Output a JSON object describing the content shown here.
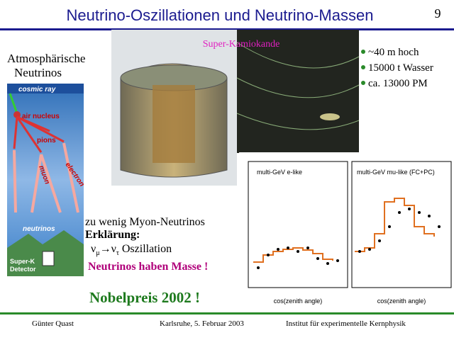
{
  "header": {
    "title": "Neutrino-Oszillationen und Neutrino-Massen",
    "page": "9"
  },
  "left": {
    "heading_line1": "Atmosphärische",
    "heading_line2": "Neutrinos"
  },
  "diagram": {
    "cosmic_ray": "cosmic ray",
    "air_nucleus": "air nucleus",
    "pions": "pions",
    "muon": "muon",
    "electron": "electron",
    "neutrinos": "neutrinos",
    "detector_line1": "Super-K",
    "detector_line2": "Detector"
  },
  "photo": {
    "caption": "Super-Kamiokande"
  },
  "bullets": [
    "~40 m hoch",
    "15000 t Wasser",
    "ca. 13000 PM"
  ],
  "text": {
    "line1": "zu wenig Myon-Neutrinos",
    "line2": "Erklärung:",
    "oscillation": {
      "from": "ν",
      "from_sub": "μ",
      "arrow": "→ν",
      "to_sub": "τ",
      "rest": " Oszillation"
    },
    "line4": "Neutrinos haben Masse !",
    "nobel": "Nobelpreis 2002 !"
  },
  "plots": {
    "left_title": "multi-GeV e-like",
    "right_title": "multi-GeV mu-like (FC+PC)",
    "left_xlabel": "cos(zenith angle)",
    "right_xlabel": "cos(zenith angle)"
  },
  "footer": {
    "author": "Günter Quast",
    "place_date": "Karlsruhe,  5. Februar 2003",
    "institute": "Institut für experimentelle Kernphysik"
  }
}
